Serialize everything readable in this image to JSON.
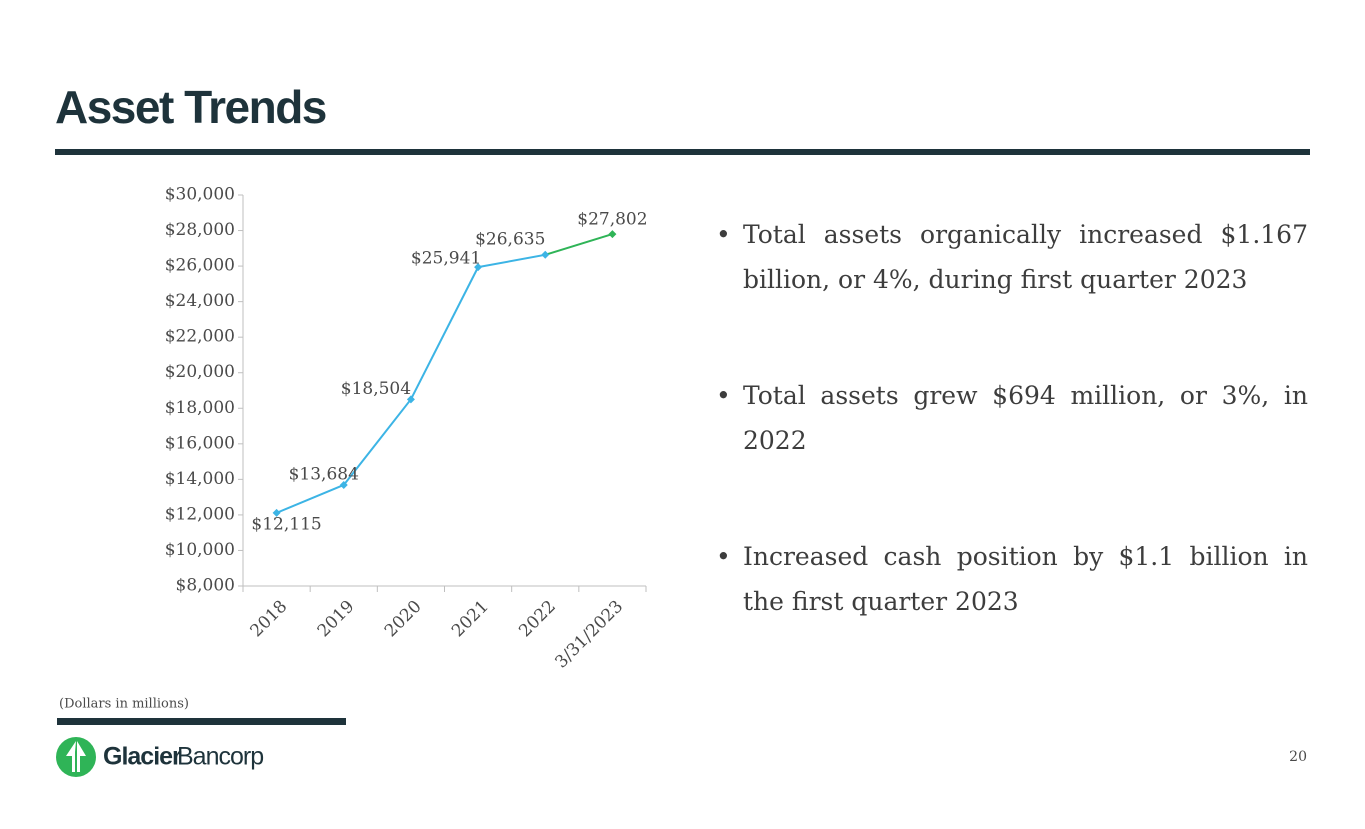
{
  "title": "Asset Trends",
  "chart_data": {
    "type": "line",
    "categories": [
      "2018",
      "2019",
      "2020",
      "2021",
      "2022",
      "3/31/2023"
    ],
    "values": [
      12115,
      13684,
      18504,
      25941,
      26635,
      27802
    ],
    "value_labels": [
      "$12,115",
      "$13,684",
      "$18,504",
      "$25,941",
      "$26,635",
      "$27,802"
    ],
    "colors": [
      "#3cb4e5",
      "#3cb4e5",
      "#3cb4e5",
      "#3cb4e5",
      "#3cb4e5",
      "#2fb457"
    ],
    "ylim": [
      8000,
      30000
    ],
    "yticks": [
      {
        "value": 8000,
        "label": "$8,000"
      },
      {
        "value": 10000,
        "label": "$10,000"
      },
      {
        "value": 12000,
        "label": "$12,000"
      },
      {
        "value": 14000,
        "label": "$14,000"
      },
      {
        "value": 16000,
        "label": "$16,000"
      },
      {
        "value": 18000,
        "label": "$18,000"
      },
      {
        "value": 20000,
        "label": "$20,000"
      },
      {
        "value": 22000,
        "label": "$22,000"
      },
      {
        "value": 24000,
        "label": "$24,000"
      },
      {
        "value": 26000,
        "label": "$26,000"
      },
      {
        "value": 28000,
        "label": "$28,000"
      },
      {
        "value": 30000,
        "label": "$30,000"
      }
    ],
    "grid": false
  },
  "bullets": [
    "Total assets organically increased $1.167 billion, or 4%, during first quarter 2023",
    "Total assets grew $694 million, or 3%, in 2022",
    "Increased cash position by $1.1 billion in the first quarter 2023"
  ],
  "footnote": "(Dollars in millions)",
  "logo": {
    "bold": "Glacier",
    "light": "Bancorp"
  },
  "page_number": "20"
}
